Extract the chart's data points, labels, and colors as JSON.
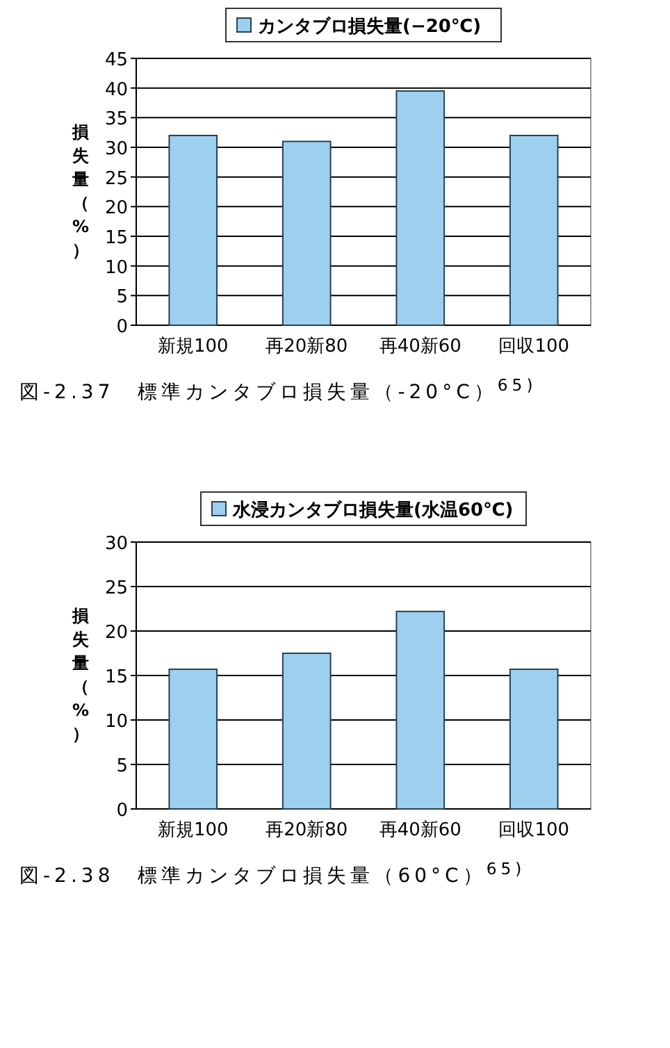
{
  "chart_data": [
    {
      "type": "bar",
      "categories": [
        "新規100",
        "再20新80",
        "再40新60",
        "回収100"
      ],
      "series": [
        {
          "name": "カンタブロ損失量(−20℃)",
          "color": "#9dd0ee",
          "values": [
            32,
            31,
            39.5,
            32
          ]
        }
      ],
      "ylabel": "損失量（%）",
      "ylim": [
        0,
        45
      ],
      "yticks": [
        0,
        5,
        10,
        15,
        20,
        25,
        30,
        35,
        40,
        45
      ],
      "grid": "y",
      "legend": "top",
      "annotations": [
        "図-2.37　標準カンタブロ損失量（-20°C）$^{65)}$"
      ]
    },
    {
      "type": "bar",
      "categories": [
        "新規100",
        "再20新80",
        "再40新60",
        "回収100"
      ],
      "series": [
        {
          "name": "水浸カンタブロ損失量(水温60℃)",
          "color": "#9dd0ee",
          "values": [
            15.7,
            17.5,
            22.2,
            15.7
          ]
        }
      ],
      "ylabel": "損失量（%）",
      "ylim": [
        0,
        30
      ],
      "yticks": [
        0,
        5,
        10,
        15,
        20,
        25,
        30
      ],
      "grid": "y",
      "legend": "top",
      "annotations": [
        "図-2.38　標準カンタブロ損失量（60°C）$^{65)}$"
      ]
    }
  ]
}
